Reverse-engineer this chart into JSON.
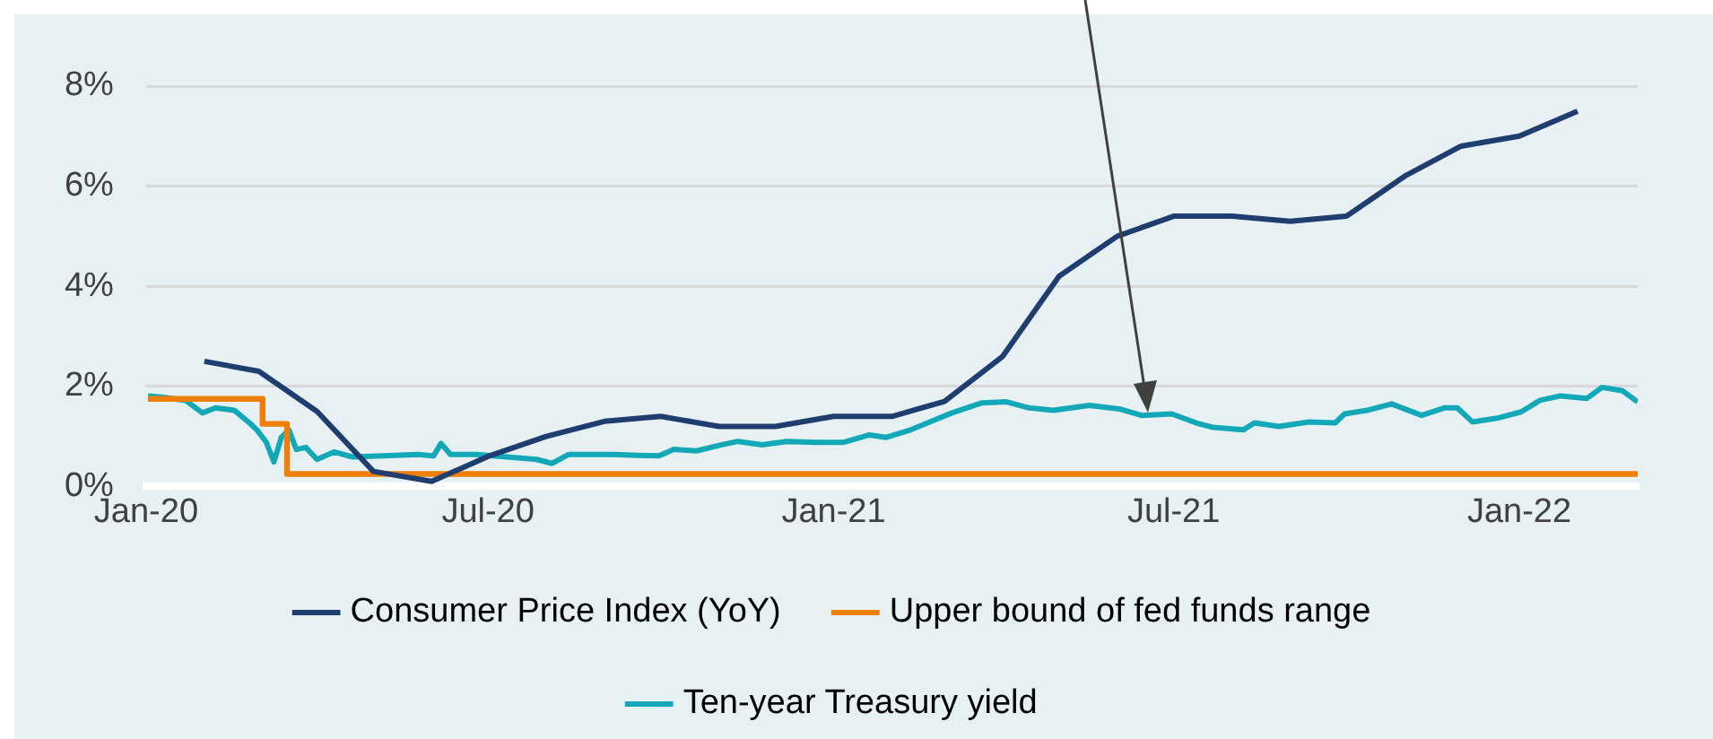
{
  "chart_data": {
    "type": "line",
    "xlim": [
      "2020-01-01",
      "2022-03-05"
    ],
    "xticks": [
      {
        "value": "2020-01-01",
        "label": "Jan-20"
      },
      {
        "value": "2020-07-01",
        "label": "Jul-20"
      },
      {
        "value": "2021-01-01",
        "label": "Jan-21"
      },
      {
        "value": "2021-07-01",
        "label": "Jul-21"
      },
      {
        "value": "2022-01-01",
        "label": "Jan-22"
      }
    ],
    "ylim": [
      0,
      8
    ],
    "yticks": [
      {
        "value": 0,
        "label": "0%"
      },
      {
        "value": 2,
        "label": "2%"
      },
      {
        "value": 4,
        "label": "4%"
      },
      {
        "value": 6,
        "label": "6%"
      },
      {
        "value": 8,
        "label": "8%"
      }
    ],
    "grid": "y",
    "legend": "bottom",
    "marker": "none",
    "series": [
      {
        "name": "Consumer Price Index (YoY)",
        "color": "#1f3d6e",
        "x": [
          "2020-02-01",
          "2020-03-01",
          "2020-04-01",
          "2020-05-01",
          "2020-06-01",
          "2020-07-01",
          "2020-08-01",
          "2020-09-01",
          "2020-10-01",
          "2020-11-01",
          "2020-12-01",
          "2021-01-01",
          "2021-02-01",
          "2021-03-01",
          "2021-04-01",
          "2021-05-01",
          "2021-06-01",
          "2021-07-01",
          "2021-08-01",
          "2021-09-01",
          "2021-10-01",
          "2021-11-01",
          "2021-12-01",
          "2022-01-01",
          "2022-02-01"
        ],
        "values": [
          2.5,
          2.3,
          1.5,
          0.3,
          0.1,
          0.6,
          1.0,
          1.3,
          1.4,
          1.2,
          1.2,
          1.4,
          1.4,
          1.7,
          2.6,
          4.2,
          5.0,
          5.4,
          5.4,
          5.3,
          5.4,
          6.2,
          6.8,
          7.0,
          7.5
        ]
      },
      {
        "name": "Upper bound of fed funds range",
        "type": "step",
        "color": "#f07f09",
        "x": [
          "2020-01-02",
          "2020-03-03",
          "2020-03-16",
          "2022-03-05"
        ],
        "values": [
          1.75,
          1.25,
          0.25,
          0.25
        ]
      },
      {
        "name": "Ten-year Treasury yield",
        "color": "#13a8b8",
        "x": [
          "2020-01-02",
          "2020-01-10",
          "2020-01-22",
          "2020-01-31",
          "2020-02-07",
          "2020-02-17",
          "2020-02-25",
          "2020-02-29",
          "2020-03-05",
          "2020-03-09",
          "2020-03-13",
          "2020-03-17",
          "2020-03-21",
          "2020-03-26",
          "2020-04-01",
          "2020-04-10",
          "2020-04-20",
          "2020-05-06",
          "2020-05-25",
          "2020-06-02",
          "2020-06-06",
          "2020-06-11",
          "2020-06-25",
          "2020-07-11",
          "2020-07-27",
          "2020-08-04",
          "2020-08-13",
          "2020-08-28",
          "2020-09-06",
          "2020-09-19",
          "2020-09-30",
          "2020-10-08",
          "2020-10-20",
          "2020-11-02",
          "2020-11-11",
          "2020-11-24",
          "2020-12-07",
          "2020-12-22",
          "2021-01-06",
          "2021-01-20",
          "2021-01-29",
          "2021-02-11",
          "2021-02-20",
          "2021-03-05",
          "2021-03-21",
          "2021-04-03",
          "2021-04-15",
          "2021-04-28",
          "2021-05-17",
          "2021-06-02",
          "2021-06-14",
          "2021-06-30",
          "2021-07-13",
          "2021-07-22",
          "2021-08-07",
          "2021-08-13",
          "2021-08-26",
          "2021-09-11",
          "2021-09-25",
          "2021-09-30",
          "2021-10-12",
          "2021-10-25",
          "2021-11-10",
          "2021-11-22",
          "2021-11-29",
          "2021-12-07",
          "2021-12-21",
          "2022-01-02",
          "2022-01-12",
          "2022-01-23",
          "2022-02-06",
          "2022-02-14",
          "2022-02-25",
          "2022-03-05"
        ],
        "values": [
          1.81,
          1.78,
          1.72,
          1.47,
          1.57,
          1.52,
          1.27,
          1.13,
          0.88,
          0.49,
          0.98,
          1.13,
          0.74,
          0.78,
          0.54,
          0.69,
          0.59,
          0.61,
          0.64,
          0.61,
          0.86,
          0.64,
          0.64,
          0.59,
          0.54,
          0.46,
          0.64,
          0.64,
          0.64,
          0.62,
          0.61,
          0.74,
          0.71,
          0.83,
          0.9,
          0.83,
          0.9,
          0.88,
          0.88,
          1.03,
          0.98,
          1.13,
          1.27,
          1.47,
          1.67,
          1.69,
          1.57,
          1.52,
          1.62,
          1.55,
          1.42,
          1.45,
          1.27,
          1.18,
          1.13,
          1.27,
          1.2,
          1.29,
          1.27,
          1.45,
          1.52,
          1.65,
          1.42,
          1.57,
          1.57,
          1.29,
          1.37,
          1.49,
          1.72,
          1.81,
          1.76,
          1.98,
          1.91,
          1.69
        ]
      }
    ]
  }
}
